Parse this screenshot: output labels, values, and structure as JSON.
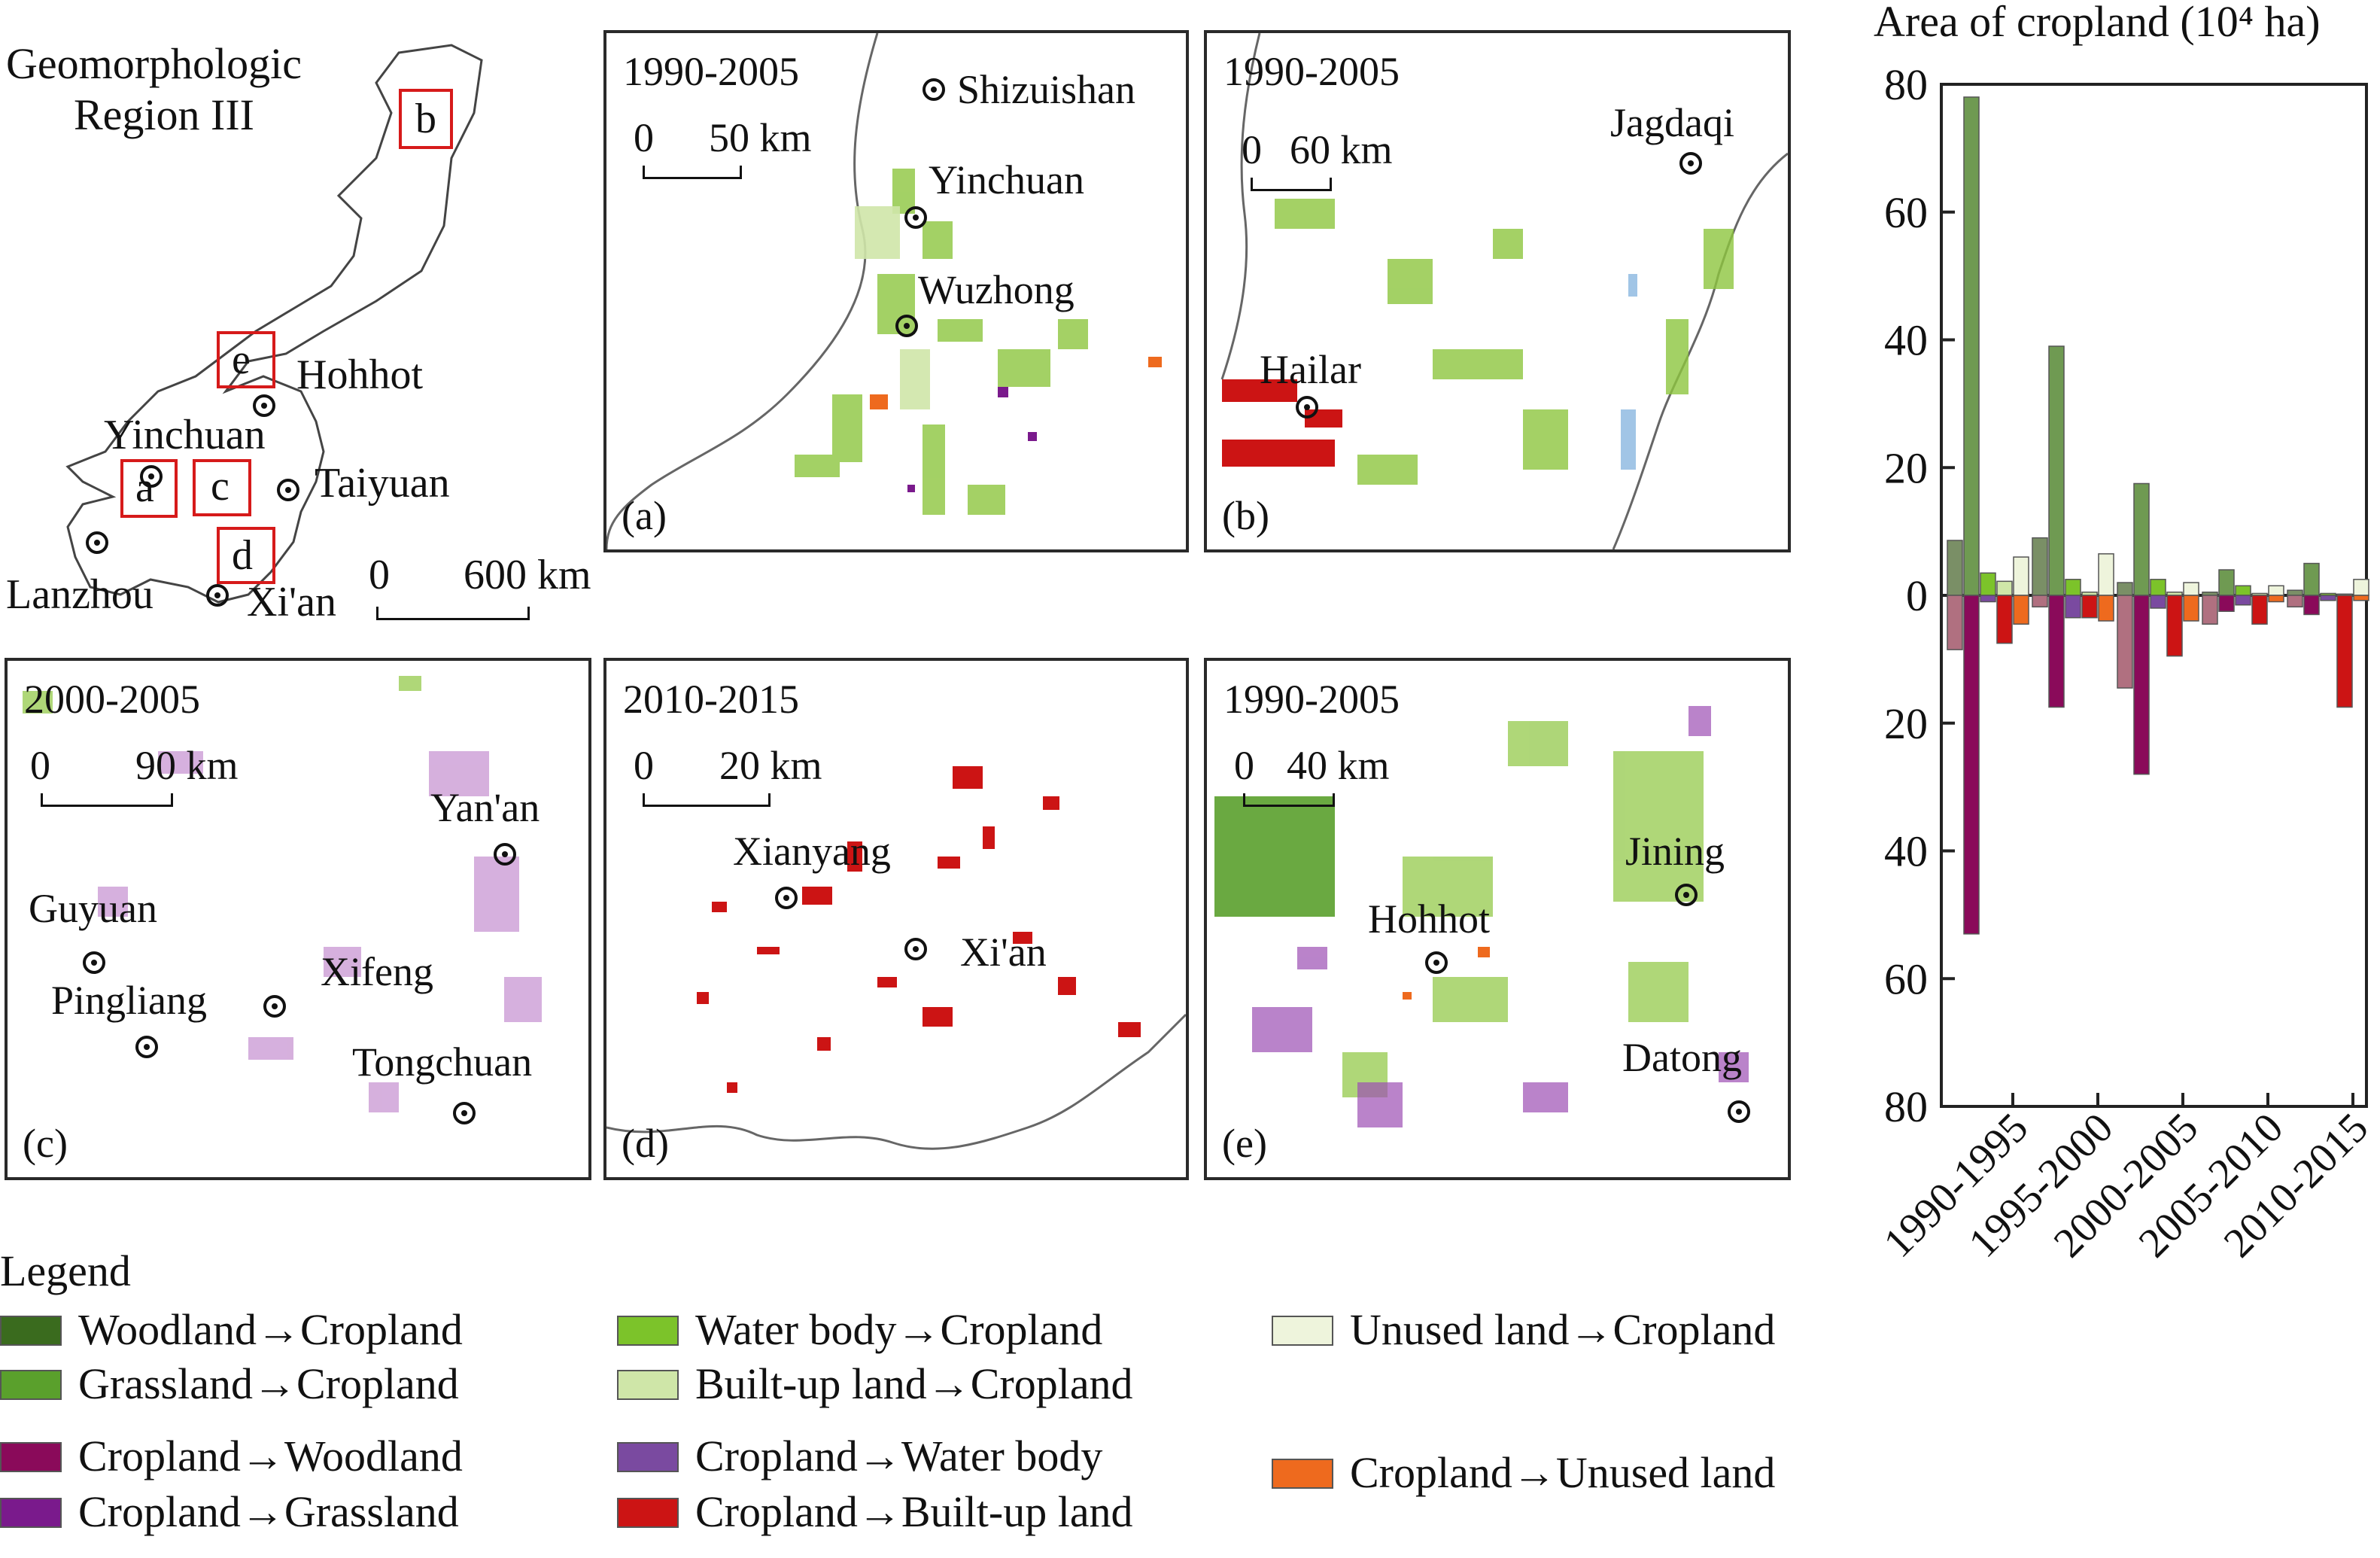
{
  "overview": {
    "title_line1": "Geomorphologic",
    "title_line2": "Region III",
    "boxes": [
      "a",
      "b",
      "c",
      "d",
      "e"
    ],
    "cities": [
      "Hohhot",
      "Yinchuan",
      "Taiyuan",
      "Lanzhou",
      "Xi'an"
    ],
    "scale_zero": "0",
    "scale_label": "600 km"
  },
  "panels": {
    "a": {
      "period": "1990-2005",
      "scale_zero": "0",
      "scale_label": "50 km",
      "tag": "(a)",
      "cities": [
        "Shizuishan",
        "Yinchuan",
        "Wuzhong"
      ]
    },
    "b": {
      "period": "1990-2005",
      "scale_zero": "0",
      "scale_label": "60 km",
      "tag": "(b)",
      "cities": [
        "Jagdaqi",
        "Hailar"
      ]
    },
    "c": {
      "period": "2000-2005",
      "scale_zero": "0",
      "scale_label": "90 km",
      "tag": "(c)",
      "cities": [
        "Yan'an",
        "Guyuan",
        "Pingliang",
        "Xifeng",
        "Tongchuan"
      ]
    },
    "d": {
      "period": "2010-2015",
      "scale_zero": "0",
      "scale_label": "20 km",
      "tag": "(d)",
      "cities": [
        "Xianyang",
        "Xi'an"
      ]
    },
    "e": {
      "period": "1990-2005",
      "scale_zero": "0",
      "scale_label": "40 km",
      "tag": "(e)",
      "cities": [
        "Jining",
        "Hohhot",
        "Datong"
      ]
    }
  },
  "legend": {
    "title": "Legend",
    "items": [
      {
        "label": "Woodland→Cropland",
        "color": "#3a6b1e"
      },
      {
        "label": "Grassland→Cropland",
        "color": "#5aa02c"
      },
      {
        "label": "Cropland→Woodland",
        "color": "#8a0a5a"
      },
      {
        "label": "Cropland→Grassland",
        "color": "#7a1a8c"
      },
      {
        "label": "Water body→Cropland",
        "color": "#7cc32a"
      },
      {
        "label": "Built-up land→Cropland",
        "color": "#cfe6a8"
      },
      {
        "label": "Cropland→Water body",
        "color": "#7a4aa0"
      },
      {
        "label": "Cropland→Built-up land",
        "color": "#cc1414"
      },
      {
        "label": "Unused land→Cropland",
        "color": "#eef4dc"
      },
      {
        "label": "Cropland→Unused land",
        "color": "#ee6a1e"
      }
    ]
  },
  "chart_data": {
    "type": "bar",
    "title": "Area of cropland (10⁴ ha)",
    "categories": [
      "1990-1995",
      "1995-2000",
      "2000-2005",
      "2005-2010",
      "2010-2015"
    ],
    "ylim": [
      -80,
      80
    ],
    "yticks": [
      80,
      60,
      40,
      20,
      0,
      20,
      40,
      60,
      80
    ],
    "gain_series": [
      {
        "values": [
          8.6,
          9.0,
          2.0,
          0.5,
          0.8
        ],
        "color": "#7a8f66"
      },
      {
        "values": [
          78.0,
          39.0,
          17.5,
          4.0,
          5.0
        ],
        "color": "#6f9a52"
      },
      {
        "values": [
          3.5,
          2.5,
          2.5,
          1.5,
          0.3
        ],
        "color": "#7cc32a"
      },
      {
        "values": [
          2.2,
          0.5,
          0.5,
          0.3,
          0.2
        ],
        "color": "#cfe6a8"
      },
      {
        "values": [
          6.0,
          6.5,
          2.0,
          1.5,
          2.5
        ],
        "color": "#eef4dc"
      }
    ],
    "loss_series": [
      {
        "values": [
          -8.5,
          -1.8,
          -14.5,
          -4.5,
          -1.8
        ],
        "color": "#b07080"
      },
      {
        "values": [
          -53.0,
          -17.5,
          -28.0,
          -2.5,
          -3.0
        ],
        "color": "#8a0a5a"
      },
      {
        "values": [
          -1.0,
          -3.5,
          -2.0,
          -1.5,
          -0.8
        ],
        "color": "#7a4aa0"
      },
      {
        "values": [
          -7.5,
          -3.5,
          -9.5,
          -4.5,
          -17.5
        ],
        "color": "#cc1414"
      },
      {
        "values": [
          -4.5,
          -4.0,
          -4.0,
          -1.0,
          -0.8
        ],
        "color": "#ee6a1e"
      }
    ]
  }
}
